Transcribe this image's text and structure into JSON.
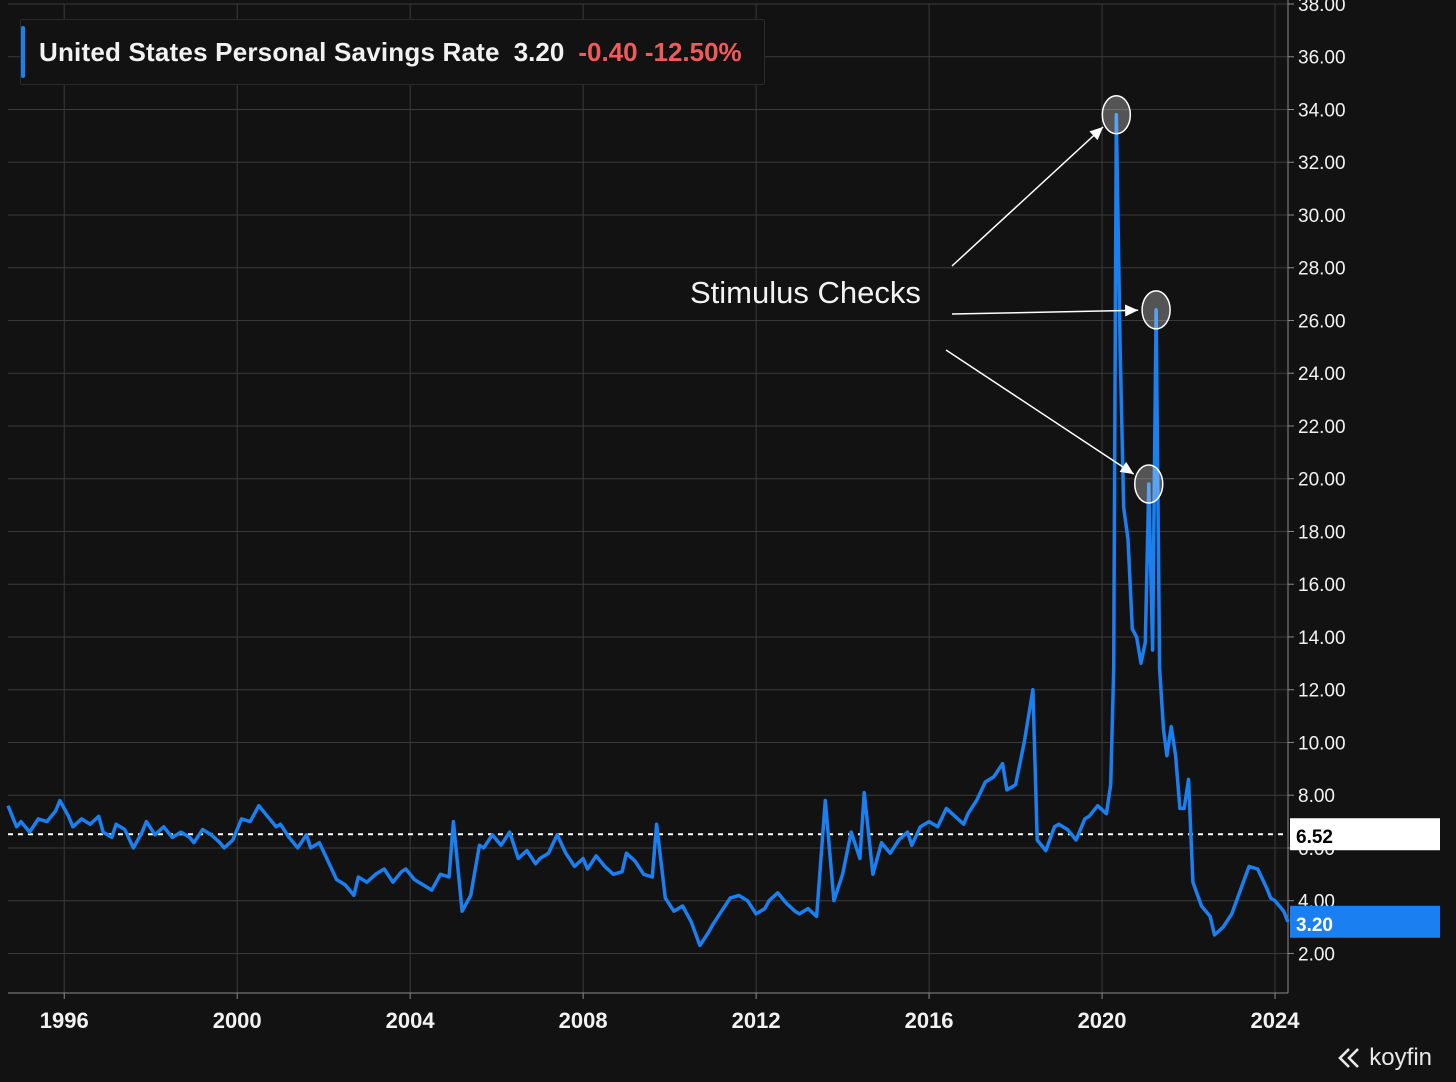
{
  "header": {
    "title": "United States Personal Savings Rate",
    "value": "3.20",
    "change": "-0.40",
    "change_pct": "-12.50%"
  },
  "annotation": {
    "text": "Stimulus Checks"
  },
  "logo": {
    "text": "koyfin",
    "icon": "koyfin-chevron-icon"
  },
  "colors": {
    "background": "#121212",
    "line": "#1a7ff0",
    "grid": "#3a3a3a",
    "text": "#f2f2f2",
    "negative": "#f05a5a",
    "price_tag": "#1a7ff0",
    "reference_tag": "#ffffff"
  },
  "chart_data": {
    "type": "line",
    "title": "United States Personal Savings Rate",
    "xlabel": "",
    "ylabel": "",
    "ylim": [
      0.5,
      38
    ],
    "xlim": [
      1994.7,
      2024.3
    ],
    "grid": true,
    "y_ticks": [
      "2.00",
      "4.00",
      "6.00",
      "8.00",
      "10.00",
      "12.00",
      "14.00",
      "16.00",
      "18.00",
      "20.00",
      "22.00",
      "24.00",
      "26.00",
      "28.00",
      "30.00",
      "32.00",
      "34.00",
      "36.00",
      "38.00"
    ],
    "x_ticks": [
      "1996",
      "2000",
      "2004",
      "2008",
      "2012",
      "2016",
      "2020",
      "2024"
    ],
    "reference_line": {
      "value": 6.52,
      "label": "6.52",
      "style": "dashed"
    },
    "last_value": {
      "value": 3.2,
      "label": "3.20"
    },
    "highlights": [
      {
        "x": 2020.33,
        "y": 33.8
      },
      {
        "x": 2021.25,
        "y": 26.4
      },
      {
        "x": 2021.08,
        "y": 19.8
      }
    ],
    "series": [
      {
        "name": "United States Personal Savings Rate",
        "points": [
          [
            1994.7,
            7.6
          ],
          [
            1994.9,
            6.8
          ],
          [
            1995.0,
            7.0
          ],
          [
            1995.2,
            6.6
          ],
          [
            1995.4,
            7.1
          ],
          [
            1995.6,
            7.0
          ],
          [
            1995.8,
            7.4
          ],
          [
            1995.9,
            7.8
          ],
          [
            1996.1,
            7.2
          ],
          [
            1996.2,
            6.8
          ],
          [
            1996.4,
            7.1
          ],
          [
            1996.6,
            6.9
          ],
          [
            1996.8,
            7.2
          ],
          [
            1996.9,
            6.6
          ],
          [
            1997.1,
            6.4
          ],
          [
            1997.2,
            6.9
          ],
          [
            1997.4,
            6.7
          ],
          [
            1997.6,
            6.0
          ],
          [
            1997.8,
            6.6
          ],
          [
            1997.9,
            7.0
          ],
          [
            1998.1,
            6.5
          ],
          [
            1998.3,
            6.8
          ],
          [
            1998.5,
            6.4
          ],
          [
            1998.7,
            6.6
          ],
          [
            1998.9,
            6.4
          ],
          [
            1999.0,
            6.2
          ],
          [
            1999.2,
            6.7
          ],
          [
            1999.4,
            6.5
          ],
          [
            1999.6,
            6.2
          ],
          [
            1999.7,
            6.0
          ],
          [
            1999.9,
            6.3
          ],
          [
            2000.1,
            7.1
          ],
          [
            2000.3,
            7.0
          ],
          [
            2000.5,
            7.6
          ],
          [
            2000.7,
            7.2
          ],
          [
            2000.9,
            6.8
          ],
          [
            2001.0,
            6.9
          ],
          [
            2001.2,
            6.4
          ],
          [
            2001.4,
            6.0
          ],
          [
            2001.6,
            6.5
          ],
          [
            2001.7,
            6.0
          ],
          [
            2001.9,
            6.2
          ],
          [
            2002.1,
            5.5
          ],
          [
            2002.3,
            4.8
          ],
          [
            2002.5,
            4.6
          ],
          [
            2002.7,
            4.2
          ],
          [
            2002.8,
            4.9
          ],
          [
            2003.0,
            4.7
          ],
          [
            2003.2,
            5.0
          ],
          [
            2003.4,
            5.2
          ],
          [
            2003.6,
            4.7
          ],
          [
            2003.8,
            5.1
          ],
          [
            2003.9,
            5.2
          ],
          [
            2004.1,
            4.8
          ],
          [
            2004.3,
            4.6
          ],
          [
            2004.5,
            4.4
          ],
          [
            2004.7,
            5.0
          ],
          [
            2004.9,
            4.9
          ],
          [
            2005.0,
            7.0
          ],
          [
            2005.2,
            3.6
          ],
          [
            2005.4,
            4.2
          ],
          [
            2005.6,
            6.1
          ],
          [
            2005.7,
            6.0
          ],
          [
            2005.9,
            6.5
          ],
          [
            2006.1,
            6.1
          ],
          [
            2006.3,
            6.6
          ],
          [
            2006.5,
            5.6
          ],
          [
            2006.7,
            5.9
          ],
          [
            2006.9,
            5.4
          ],
          [
            2007.0,
            5.6
          ],
          [
            2007.2,
            5.8
          ],
          [
            2007.4,
            6.5
          ],
          [
            2007.6,
            5.8
          ],
          [
            2007.8,
            5.3
          ],
          [
            2008.0,
            5.6
          ],
          [
            2008.1,
            5.2
          ],
          [
            2008.3,
            5.7
          ],
          [
            2008.5,
            5.3
          ],
          [
            2008.7,
            5.0
          ],
          [
            2008.9,
            5.1
          ],
          [
            2009.0,
            5.8
          ],
          [
            2009.2,
            5.5
          ],
          [
            2009.4,
            5.0
          ],
          [
            2009.6,
            4.9
          ],
          [
            2009.7,
            6.9
          ],
          [
            2009.9,
            4.1
          ],
          [
            2010.1,
            3.6
          ],
          [
            2010.3,
            3.8
          ],
          [
            2010.5,
            3.2
          ],
          [
            2010.7,
            2.3
          ],
          [
            2010.9,
            2.8
          ],
          [
            2011.0,
            3.1
          ],
          [
            2011.2,
            3.6
          ],
          [
            2011.4,
            4.1
          ],
          [
            2011.6,
            4.2
          ],
          [
            2011.8,
            4.0
          ],
          [
            2012.0,
            3.5
          ],
          [
            2012.2,
            3.7
          ],
          [
            2012.3,
            4.0
          ],
          [
            2012.5,
            4.3
          ],
          [
            2012.7,
            3.9
          ],
          [
            2012.9,
            3.6
          ],
          [
            2013.0,
            3.5
          ],
          [
            2013.2,
            3.7
          ],
          [
            2013.4,
            3.4
          ],
          [
            2013.6,
            7.8
          ],
          [
            2013.8,
            4.0
          ],
          [
            2014.0,
            5.0
          ],
          [
            2014.2,
            6.6
          ],
          [
            2014.4,
            5.6
          ],
          [
            2014.5,
            8.1
          ],
          [
            2014.7,
            5.0
          ],
          [
            2014.9,
            6.2
          ],
          [
            2015.1,
            5.8
          ],
          [
            2015.3,
            6.3
          ],
          [
            2015.5,
            6.6
          ],
          [
            2015.6,
            6.1
          ],
          [
            2015.8,
            6.8
          ],
          [
            2016.0,
            7.0
          ],
          [
            2016.2,
            6.8
          ],
          [
            2016.4,
            7.5
          ],
          [
            2016.6,
            7.2
          ],
          [
            2016.8,
            6.9
          ],
          [
            2016.9,
            7.3
          ],
          [
            2017.1,
            7.8
          ],
          [
            2017.3,
            8.5
          ],
          [
            2017.5,
            8.7
          ],
          [
            2017.7,
            9.2
          ],
          [
            2017.8,
            8.2
          ],
          [
            2018.0,
            8.4
          ],
          [
            2018.2,
            10.0
          ],
          [
            2018.4,
            12.0
          ],
          [
            2018.5,
            6.3
          ],
          [
            2018.7,
            5.9
          ],
          [
            2018.9,
            6.8
          ],
          [
            2019.0,
            6.9
          ],
          [
            2019.2,
            6.7
          ],
          [
            2019.4,
            6.3
          ],
          [
            2019.6,
            7.1
          ],
          [
            2019.7,
            7.2
          ],
          [
            2019.9,
            7.6
          ],
          [
            2020.1,
            7.3
          ],
          [
            2020.2,
            8.4
          ],
          [
            2020.27,
            12.8
          ],
          [
            2020.33,
            33.8
          ],
          [
            2020.42,
            24.8
          ],
          [
            2020.5,
            18.9
          ],
          [
            2020.6,
            17.7
          ],
          [
            2020.7,
            14.3
          ],
          [
            2020.8,
            14.0
          ],
          [
            2020.9,
            13.0
          ],
          [
            2021.0,
            13.8
          ],
          [
            2021.08,
            19.8
          ],
          [
            2021.17,
            13.5
          ],
          [
            2021.25,
            26.4
          ],
          [
            2021.33,
            12.8
          ],
          [
            2021.42,
            10.5
          ],
          [
            2021.5,
            9.5
          ],
          [
            2021.6,
            10.6
          ],
          [
            2021.7,
            9.5
          ],
          [
            2021.8,
            7.5
          ],
          [
            2021.9,
            7.5
          ],
          [
            2022.0,
            8.6
          ],
          [
            2022.1,
            4.7
          ],
          [
            2022.3,
            3.8
          ],
          [
            2022.5,
            3.4
          ],
          [
            2022.6,
            2.7
          ],
          [
            2022.8,
            3.0
          ],
          [
            2023.0,
            3.5
          ],
          [
            2023.2,
            4.4
          ],
          [
            2023.4,
            5.3
          ],
          [
            2023.6,
            5.2
          ],
          [
            2023.8,
            4.5
          ],
          [
            2023.9,
            4.1
          ],
          [
            2024.0,
            4.0
          ],
          [
            2024.2,
            3.6
          ],
          [
            2024.3,
            3.2
          ]
        ]
      }
    ]
  }
}
